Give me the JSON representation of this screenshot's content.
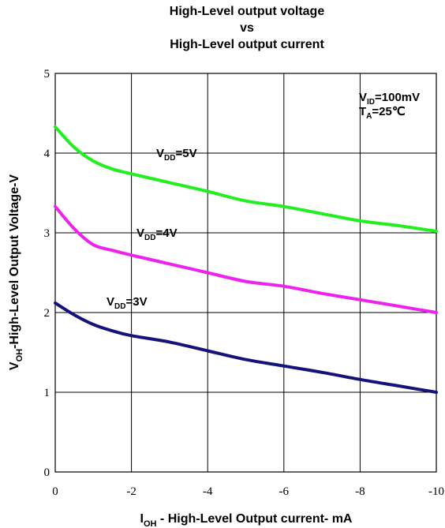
{
  "chart_data": {
    "type": "line",
    "title_lines": [
      "High-Level output voltage",
      "vs",
      "High-Level output current"
    ],
    "xlabel": {
      "main": "I",
      "sub": "OH",
      "rest": " - High-Level Output current- mA"
    },
    "ylabel": {
      "main": "V",
      "sub": "OH",
      "rest": "-High-Level Output Voltage-V"
    },
    "xlim": [
      0,
      -10
    ],
    "ylim": [
      0,
      5
    ],
    "x_ticks": [
      0,
      -2,
      -4,
      -6,
      -8,
      -10
    ],
    "y_ticks": [
      0,
      1,
      2,
      3,
      4,
      5
    ],
    "grid": true,
    "conditions": [
      {
        "main": "V",
        "sub": "ID",
        "rest": "=100mV"
      },
      {
        "main": "T",
        "sub": "A",
        "rest": "=25℃"
      }
    ],
    "series": [
      {
        "name": "VDD=5V",
        "label": {
          "main": "V",
          "sub": "DD",
          "rest": "=5V"
        },
        "color": "#22ee22",
        "x": [
          0,
          -0.5,
          -1,
          -1.5,
          -2,
          -3,
          -4,
          -5,
          -6,
          -7,
          -8,
          -9,
          -10
        ],
        "y": [
          4.33,
          4.07,
          3.9,
          3.8,
          3.74,
          3.63,
          3.52,
          3.4,
          3.33,
          3.24,
          3.15,
          3.09,
          3.02
        ]
      },
      {
        "name": "VDD=4V",
        "label": {
          "main": "V",
          "sub": "DD",
          "rest": "=4V"
        },
        "color": "#ee22ee",
        "x": [
          0,
          -0.5,
          -1,
          -1.5,
          -2,
          -3,
          -4,
          -5,
          -6,
          -7,
          -8,
          -9,
          -10
        ],
        "y": [
          3.33,
          3.05,
          2.85,
          2.78,
          2.72,
          2.61,
          2.5,
          2.39,
          2.33,
          2.24,
          2.16,
          2.08,
          2.0
        ]
      },
      {
        "name": "VDD=3V",
        "label": {
          "main": "V",
          "sub": "DD",
          "rest": "=3V"
        },
        "color": "#13137a",
        "x": [
          0,
          -0.5,
          -1,
          -1.5,
          -2,
          -3,
          -4,
          -5,
          -6,
          -7,
          -8,
          -9,
          -10
        ],
        "y": [
          2.12,
          1.97,
          1.85,
          1.77,
          1.71,
          1.63,
          1.52,
          1.41,
          1.33,
          1.25,
          1.16,
          1.08,
          1.0
        ]
      }
    ]
  }
}
